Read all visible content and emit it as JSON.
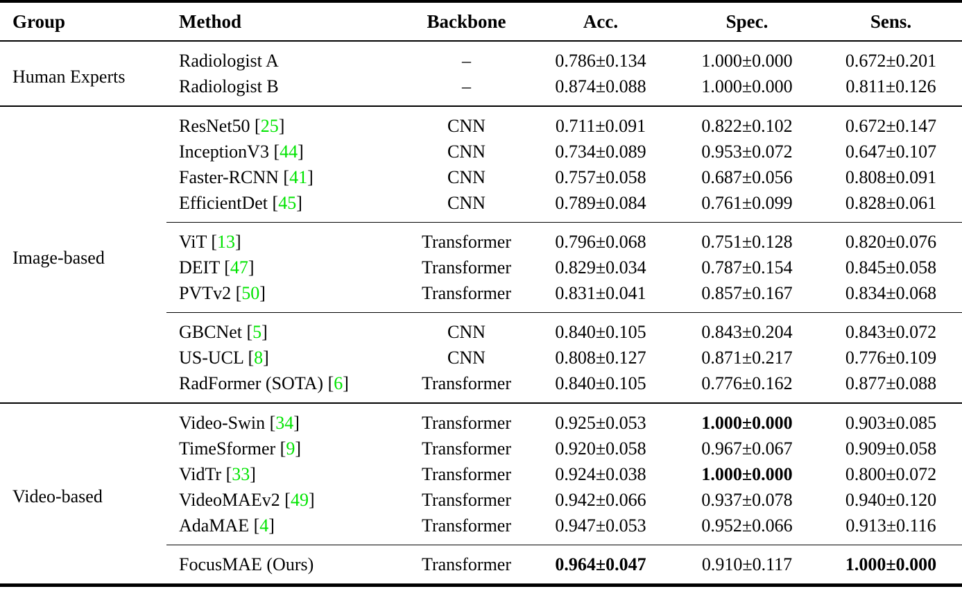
{
  "colors": {
    "citation_green": "#00e400",
    "text": "#000000",
    "background": "#ffffff",
    "rule": "#000000"
  },
  "table": {
    "columns": [
      "Group",
      "Method",
      "Backbone",
      "Acc.",
      "Spec.",
      "Sens."
    ],
    "groups": [
      {
        "label": "Human Experts",
        "subgroups": [
          {
            "rows": [
              {
                "method": "Radiologist A",
                "cite": "",
                "backbone": "–",
                "acc": "0.786±0.134",
                "spec": "1.000±0.000",
                "sens": "0.672±0.201",
                "bold": []
              },
              {
                "method": "Radiologist B",
                "cite": "",
                "backbone": "–",
                "acc": "0.874±0.088",
                "spec": "1.000±0.000",
                "sens": "0.811±0.126",
                "bold": []
              }
            ]
          }
        ]
      },
      {
        "label": "Image-based",
        "subgroups": [
          {
            "rows": [
              {
                "method": "ResNet50",
                "cite": "25",
                "backbone": "CNN",
                "acc": "0.711±0.091",
                "spec": "0.822±0.102",
                "sens": "0.672±0.147",
                "bold": []
              },
              {
                "method": "InceptionV3",
                "cite": "44",
                "backbone": "CNN",
                "acc": "0.734±0.089",
                "spec": "0.953±0.072",
                "sens": "0.647±0.107",
                "bold": []
              },
              {
                "method": "Faster-RCNN",
                "cite": "41",
                "backbone": "CNN",
                "acc": "0.757±0.058",
                "spec": "0.687±0.056",
                "sens": "0.808±0.091",
                "bold": []
              },
              {
                "method": "EfficientDet",
                "cite": "45",
                "backbone": "CNN",
                "acc": "0.789±0.084",
                "spec": "0.761±0.099",
                "sens": "0.828±0.061",
                "bold": []
              }
            ]
          },
          {
            "rows": [
              {
                "method": "ViT",
                "cite": "13",
                "backbone": "Transformer",
                "acc": "0.796±0.068",
                "spec": "0.751±0.128",
                "sens": "0.820±0.076",
                "bold": []
              },
              {
                "method": "DEIT",
                "cite": "47",
                "backbone": "Transformer",
                "acc": "0.829±0.034",
                "spec": "0.787±0.154",
                "sens": "0.845±0.058",
                "bold": []
              },
              {
                "method": "PVTv2",
                "cite": "50",
                "backbone": "Transformer",
                "acc": "0.831±0.041",
                "spec": "0.857±0.167",
                "sens": "0.834±0.068",
                "bold": []
              }
            ]
          },
          {
            "rows": [
              {
                "method": "GBCNet",
                "cite": "5",
                "backbone": "CNN",
                "acc": "0.840±0.105",
                "spec": "0.843±0.204",
                "sens": "0.843±0.072",
                "bold": []
              },
              {
                "method": "US-UCL",
                "cite": "8",
                "backbone": "CNN",
                "acc": "0.808±0.127",
                "spec": "0.871±0.217",
                "sens": "0.776±0.109",
                "bold": []
              },
              {
                "method": "RadFormer (SOTA)",
                "cite": "6",
                "backbone": "Transformer",
                "acc": "0.840±0.105",
                "spec": "0.776±0.162",
                "sens": "0.877±0.088",
                "bold": []
              }
            ]
          }
        ]
      },
      {
        "label": "Video-based",
        "subgroups": [
          {
            "rows": [
              {
                "method": "Video-Swin",
                "cite": "34",
                "backbone": "Transformer",
                "acc": "0.925±0.053",
                "spec": "1.000±0.000",
                "sens": "0.903±0.085",
                "bold": [
                  "spec"
                ]
              },
              {
                "method": "TimeSformer",
                "cite": "9",
                "backbone": "Transformer",
                "acc": "0.920±0.058",
                "spec": "0.967±0.067",
                "sens": "0.909±0.058",
                "bold": []
              },
              {
                "method": "VidTr",
                "cite": "33",
                "backbone": "Transformer",
                "acc": "0.924±0.038",
                "spec": "1.000±0.000",
                "sens": "0.800±0.072",
                "bold": [
                  "spec"
                ]
              },
              {
                "method": "VideoMAEv2",
                "cite": "49",
                "backbone": "Transformer",
                "acc": "0.942±0.066",
                "spec": "0.937±0.078",
                "sens": "0.940±0.120",
                "bold": []
              },
              {
                "method": "AdaMAE",
                "cite": "4",
                "backbone": "Transformer",
                "acc": "0.947±0.053",
                "spec": "0.952±0.066",
                "sens": "0.913±0.116",
                "bold": []
              }
            ]
          },
          {
            "rows": [
              {
                "method": "FocusMAE (Ours)",
                "cite": "",
                "backbone": "Transformer",
                "acc": "0.964±0.047",
                "spec": "0.910±0.117",
                "sens": "1.000±0.000",
                "bold": [
                  "acc",
                  "sens"
                ]
              }
            ]
          }
        ]
      }
    ]
  }
}
